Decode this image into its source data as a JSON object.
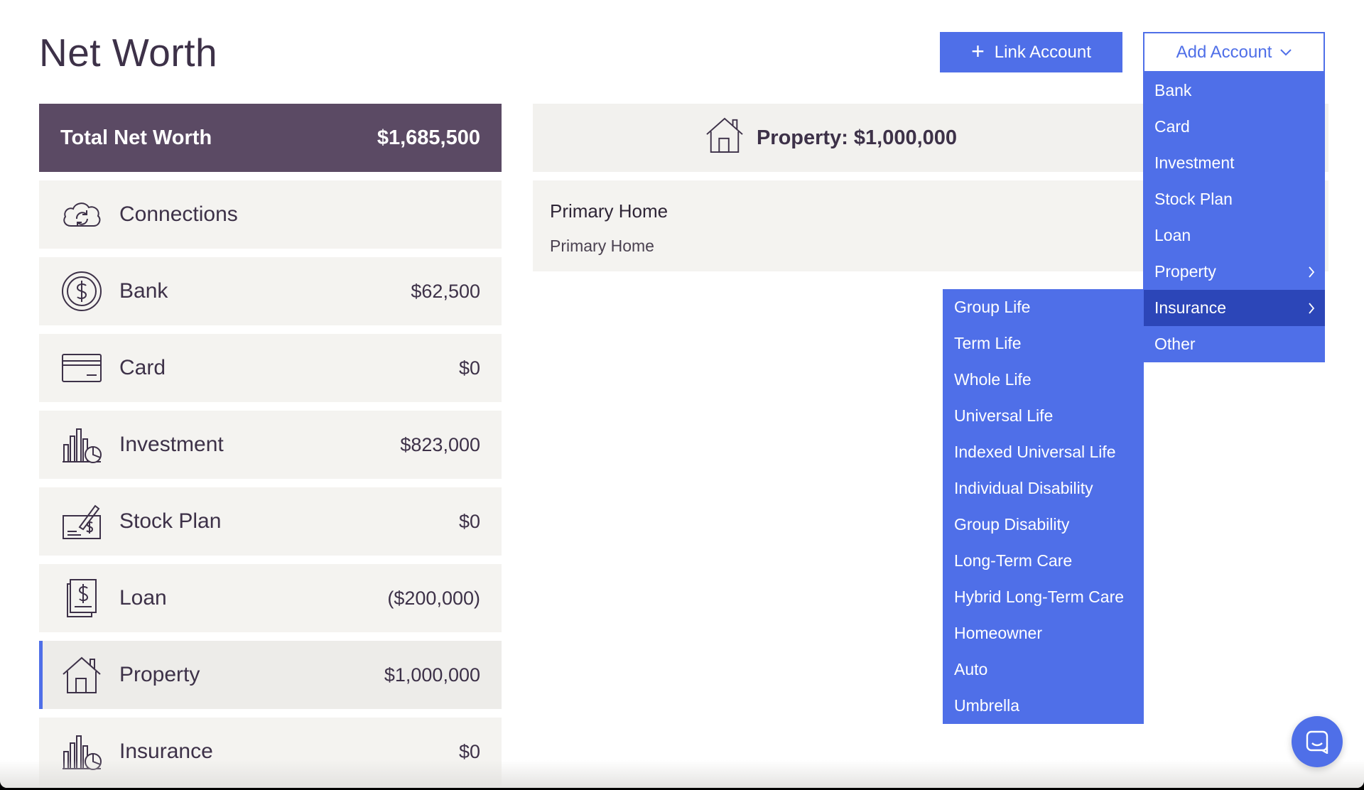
{
  "header": {
    "title": "Net Worth",
    "link_account_label": "Link Account",
    "add_account_label": "Add Account"
  },
  "summary": {
    "total_label": "Total Net Worth",
    "total_value": "$1,685,500"
  },
  "categories": [
    {
      "label": "Connections",
      "value": "",
      "icon": "cloud-sync-icon"
    },
    {
      "label": "Bank",
      "value": "$62,500",
      "icon": "dollar-coin-icon"
    },
    {
      "label": "Card",
      "value": "$0",
      "icon": "credit-card-icon"
    },
    {
      "label": "Investment",
      "value": "$823,000",
      "icon": "chart-pie-icon"
    },
    {
      "label": "Stock Plan",
      "value": "$0",
      "icon": "check-pen-icon"
    },
    {
      "label": "Loan",
      "value": "($200,000)",
      "icon": "document-dollar-icon"
    },
    {
      "label": "Property",
      "value": "$1,000,000",
      "icon": "house-icon",
      "active": true
    },
    {
      "label": "Insurance",
      "value": "$0",
      "icon": "chart-pie-icon"
    }
  ],
  "property_panel": {
    "header": "Property: $1,000,000",
    "items": [
      {
        "name": "Primary Home",
        "subtitle": "Primary Home"
      }
    ]
  },
  "add_account_menu": [
    {
      "label": "Bank"
    },
    {
      "label": "Card"
    },
    {
      "label": "Investment"
    },
    {
      "label": "Stock Plan"
    },
    {
      "label": "Loan"
    },
    {
      "label": "Property",
      "has_submenu": true
    },
    {
      "label": "Insurance",
      "has_submenu": true,
      "selected": true
    },
    {
      "label": "Other"
    }
  ],
  "insurance_submenu": [
    "Group Life",
    "Term Life",
    "Whole Life",
    "Universal Life",
    "Indexed Universal Life",
    "Individual Disability",
    "Group Disability",
    "Long-Term Care",
    "Hybrid Long-Term Care",
    "Homeowner",
    "Auto",
    "Umbrella"
  ],
  "colors": {
    "accent": "#4f6fe8",
    "accent_dark": "#2c46b8",
    "header_card": "#5b4a64",
    "row_bg": "#f4f3f0",
    "text": "#3d3148"
  }
}
